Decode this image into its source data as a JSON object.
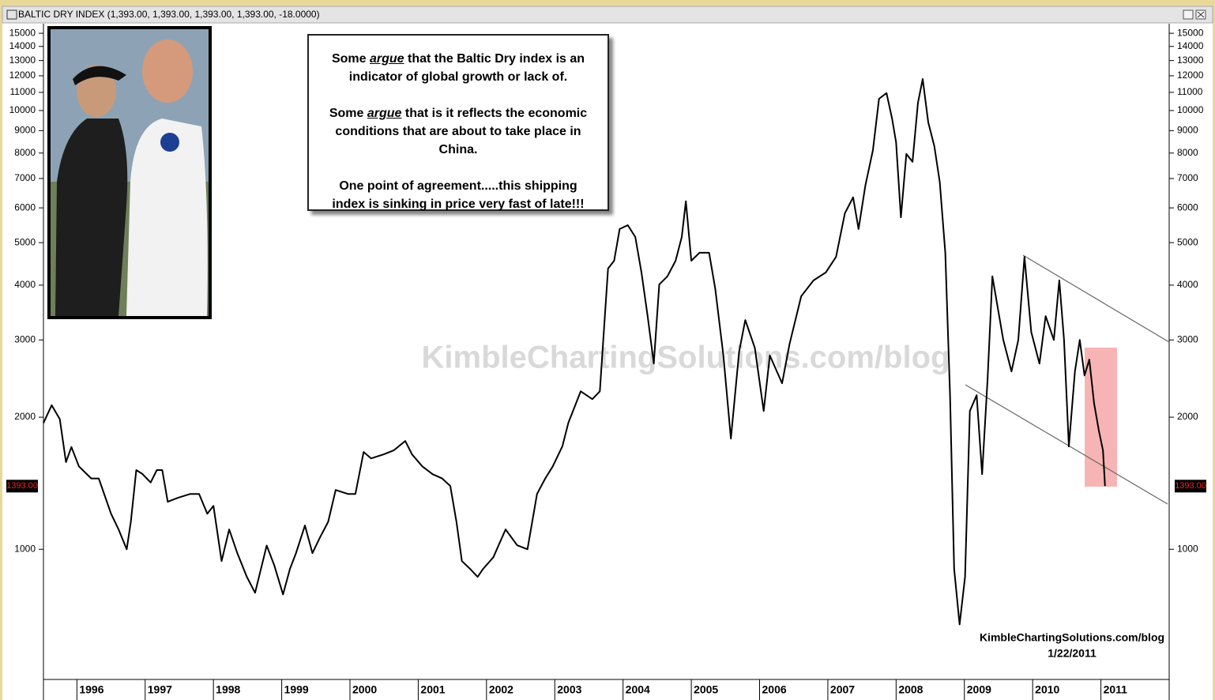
{
  "chart_data": {
    "type": "line",
    "title": "BALTIC DRY INDEX (1,393.00, 1,393.00, 1,393.00, 1,393.00, -18.0000)",
    "watermark": "KimbleChartingSolutions.com/blog",
    "footer": [
      "KimbleChartingSolutions.com/blog",
      "1/22/2011"
    ],
    "annotation": [
      [
        "Some ",
        "argue",
        " that the Baltic Dry index is an indicator of global growth or lack of."
      ],
      [
        "Some ",
        "argue",
        " that is it reflects the economic conditions that are about to take place in China."
      ],
      [
        "One point of agreement.....this shipping index is sinking in price very fast of late!!!"
      ]
    ],
    "last_label": {
      "value": 1393,
      "label": "1393.00"
    },
    "color": "#000000",
    "log_scale": true,
    "x": [
      1995.51,
      1995.63,
      1995.75,
      1995.84,
      1995.92,
      1996.03,
      1996.21,
      1996.32,
      1996.5,
      1996.61,
      1996.73,
      1996.79,
      1996.87,
      1996.96,
      1997.08,
      1997.17,
      1997.25,
      1997.33,
      1997.48,
      1997.66,
      1997.79,
      1997.91,
      1998.0,
      1998.12,
      1998.23,
      1998.35,
      1998.49,
      1998.61,
      1998.78,
      1998.89,
      1999.02,
      1999.12,
      1999.21,
      1999.34,
      1999.45,
      1999.56,
      1999.68,
      1999.79,
      1999.97,
      2000.08,
      2000.2,
      2000.31,
      2000.49,
      2000.64,
      2000.81,
      2000.91,
      2001.06,
      2001.21,
      2001.35,
      2001.47,
      2001.56,
      2001.64,
      2001.76,
      2001.87,
      2001.95,
      2002.1,
      2002.28,
      2002.45,
      2002.6,
      2002.74,
      2002.86,
      2002.97,
      2003.11,
      2003.2,
      2003.38,
      2003.55,
      2003.66,
      2003.78,
      2003.87,
      2003.95,
      2004.07,
      2004.18,
      2004.27,
      2004.36,
      2004.45,
      2004.53,
      2004.65,
      2004.77,
      2004.86,
      2004.92,
      2005.0,
      2005.12,
      2005.26,
      2005.35,
      2005.47,
      2005.58,
      2005.7,
      2005.79,
      2005.93,
      2006.06,
      2006.15,
      2006.33,
      2006.44,
      2006.61,
      2006.79,
      2006.97,
      2007.12,
      2007.25,
      2007.37,
      2007.45,
      2007.55,
      2007.66,
      2007.75,
      2007.86,
      2007.94,
      2008.0,
      2008.07,
      2008.15,
      2008.24,
      2008.32,
      2008.39,
      2008.47,
      2008.56,
      2008.64,
      2008.72,
      2008.79,
      2008.85,
      2008.93,
      2009.01,
      2009.08,
      2009.18,
      2009.26,
      2009.34,
      2009.41,
      2009.49,
      2009.57,
      2009.69,
      2009.79,
      2009.88,
      2009.98,
      2010.1,
      2010.19,
      2010.31,
      2010.39,
      2010.46,
      2010.53,
      2010.62,
      2010.69,
      2010.76,
      2010.83,
      2010.9,
      2010.97,
      2011.03,
      2011.06
    ],
    "values": [
      1940,
      2130,
      1980,
      1580,
      1710,
      1545,
      1450,
      1450,
      1205,
      1110,
      1000,
      1155,
      1515,
      1485,
      1420,
      1515,
      1515,
      1283,
      1310,
      1337,
      1337,
      1205,
      1256,
      940,
      1110,
      980,
      865,
      796,
      1020,
      920,
      789,
      902,
      980,
      1133,
      980,
      1064,
      1155,
      1365,
      1337,
      1337,
      1666,
      1611,
      1645,
      1680,
      1765,
      1645,
      1545,
      1483,
      1450,
      1394,
      1155,
      940,
      902,
      865,
      902,
      959,
      1110,
      1021,
      1000,
      1337,
      1450,
      1545,
      1715,
      1943,
      2291,
      2199,
      2291,
      4364,
      4546,
      5370,
      5480,
      5150,
      4274,
      3400,
      2650,
      4013,
      4189,
      4546,
      5150,
      6210,
      4546,
      4742,
      4742,
      3935,
      2764,
      1787,
      2820,
      3330,
      2878,
      2066,
      2764,
      2390,
      2940,
      3773,
      4100,
      4274,
      4640,
      5834,
      6340,
      5370,
      6745,
      8128,
      10640,
      10960,
      9590,
      8470,
      5710,
      7960,
      7640,
      10420,
      11800,
      9400,
      8300,
      6870,
      4742,
      2245,
      902,
      674,
      865,
      2066,
      2245,
      1483,
      2438,
      4189,
      3545,
      3000,
      2543,
      3000,
      4640,
      3128,
      2650,
      3400,
      3000,
      4100,
      3000,
      1715,
      2543,
      3000,
      2490,
      2705,
      2154,
      1863,
      1680,
      1393
    ],
    "xlim": [
      1995.51,
      2012.0
    ],
    "xticks": [
      1996,
      1997,
      1998,
      1999,
      2000,
      2001,
      2002,
      2003,
      2004,
      2005,
      2006,
      2007,
      2008,
      2009,
      2010,
      2011
    ],
    "ylim": [
      505,
      15450
    ],
    "yticks": [
      1000,
      2000,
      3000,
      4000,
      5000,
      6000,
      7000,
      8000,
      9000,
      10000,
      11000,
      12000,
      13000,
      14000,
      15000
    ]
  }
}
